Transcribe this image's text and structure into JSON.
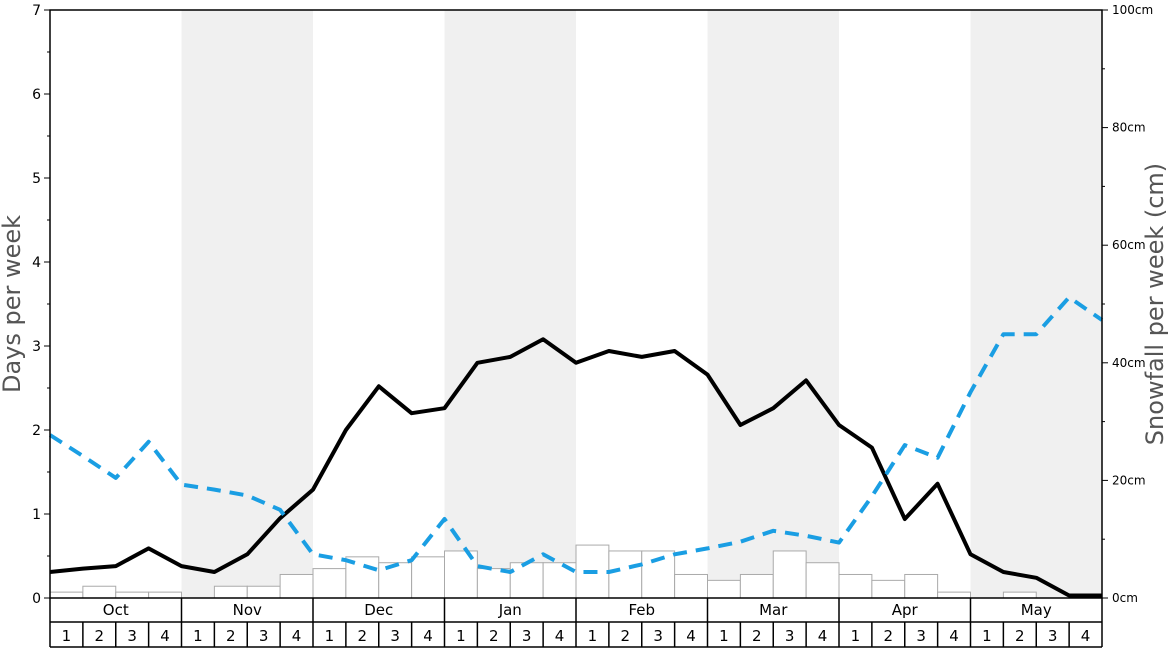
{
  "chart_data": {
    "type": "line",
    "y_left": {
      "label": "Days per week",
      "ylim": [
        0,
        7
      ],
      "ticks": [
        "0",
        "1",
        "2",
        "3",
        "4",
        "5",
        "6",
        "7"
      ]
    },
    "y_right": {
      "label": "Snowfall per week (cm)",
      "ylim": [
        0,
        100
      ],
      "ticks": [
        "0cm",
        "20cm",
        "40cm",
        "60cm",
        "80cm",
        "100cm"
      ]
    },
    "months": [
      "Oct",
      "Nov",
      "Dec",
      "Jan",
      "Feb",
      "Mar",
      "Apr",
      "May"
    ],
    "weeks": [
      "1",
      "2",
      "3",
      "4"
    ],
    "shaded_months": [
      "Nov",
      "Jan",
      "Mar",
      "May"
    ],
    "series": [
      {
        "kind": "line",
        "axis": "left",
        "color": "#000000",
        "style": "solid",
        "values": [
          0.31,
          0.35,
          0.38,
          0.59,
          0.38,
          0.31,
          0.52,
          0.95,
          1.29,
          2.0,
          2.52,
          2.2,
          2.26,
          2.8,
          2.87,
          3.08,
          2.8,
          2.94,
          2.87,
          2.94,
          2.66,
          2.06,
          2.26,
          2.59,
          2.06,
          1.79,
          0.94,
          1.36,
          0.52,
          0.31,
          0.24,
          0.03,
          0.03
        ]
      },
      {
        "kind": "line",
        "axis": "left",
        "color": "#1a9ee3",
        "style": "dashed",
        "values": [
          1.94,
          1.69,
          1.43,
          1.86,
          1.35,
          1.29,
          1.22,
          1.05,
          0.52,
          0.45,
          0.33,
          0.45,
          0.94,
          0.38,
          0.31,
          0.52,
          0.31,
          0.31,
          0.4,
          0.52,
          0.59,
          0.67,
          0.8,
          0.74,
          0.66,
          1.21,
          1.82,
          1.67,
          2.45,
          3.14,
          3.14,
          3.58,
          3.31
        ]
      },
      {
        "kind": "bar",
        "axis": "right",
        "color": "#ffffff",
        "edge": "#aaaaaa",
        "values_cm": [
          1,
          2,
          1,
          1,
          0,
          2,
          2,
          4,
          5,
          7,
          6,
          7,
          8,
          5,
          6,
          6,
          9,
          8,
          8,
          4,
          3,
          4,
          8,
          6,
          4,
          3,
          4,
          1,
          0,
          1,
          0,
          0
        ]
      }
    ]
  }
}
